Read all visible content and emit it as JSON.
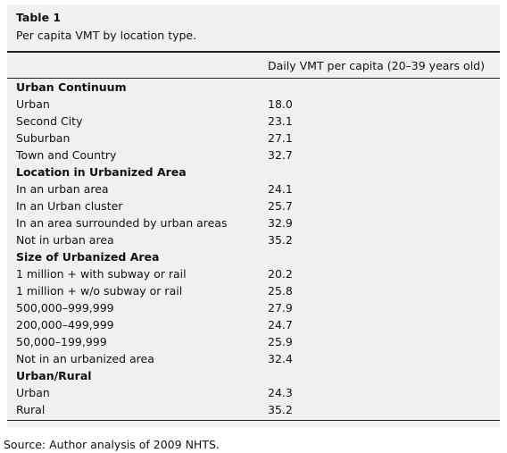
{
  "table": {
    "title": "Table 1",
    "caption": "Per capita VMT by location type.",
    "header": "Daily VMT per capita (20–39 years old)",
    "groups": [
      {
        "title": "Urban Continuum",
        "rows": [
          [
            "Urban",
            "18.0"
          ],
          [
            "Second City",
            "23.1"
          ],
          [
            "Suburban",
            "27.1"
          ],
          [
            "Town and Country",
            "32.7"
          ]
        ]
      },
      {
        "title": "Location in Urbanized Area",
        "rows": [
          [
            "In an urban area",
            "24.1"
          ],
          [
            "In an Urban cluster",
            "25.7"
          ],
          [
            "In an area surrounded by urban areas",
            "32.9"
          ],
          [
            "Not in urban area",
            "35.2"
          ]
        ]
      },
      {
        "title": "Size of Urbanized Area",
        "rows": [
          [
            "1 million + with subway or rail",
            "20.2"
          ],
          [
            "1 million + w/o subway or rail",
            "25.8"
          ],
          [
            "500,000–999,999",
            "27.9"
          ],
          [
            "200,000–499,999",
            "24.7"
          ],
          [
            "50,000–199,999",
            "25.9"
          ],
          [
            "Not in an urbanized area",
            "32.4"
          ]
        ]
      },
      {
        "title": "Urban/Rural",
        "rows": [
          [
            "Urban",
            "24.3"
          ],
          [
            "Rural",
            "35.2"
          ]
        ]
      }
    ],
    "source": "Source: Author analysis of 2009 NHTS."
  }
}
